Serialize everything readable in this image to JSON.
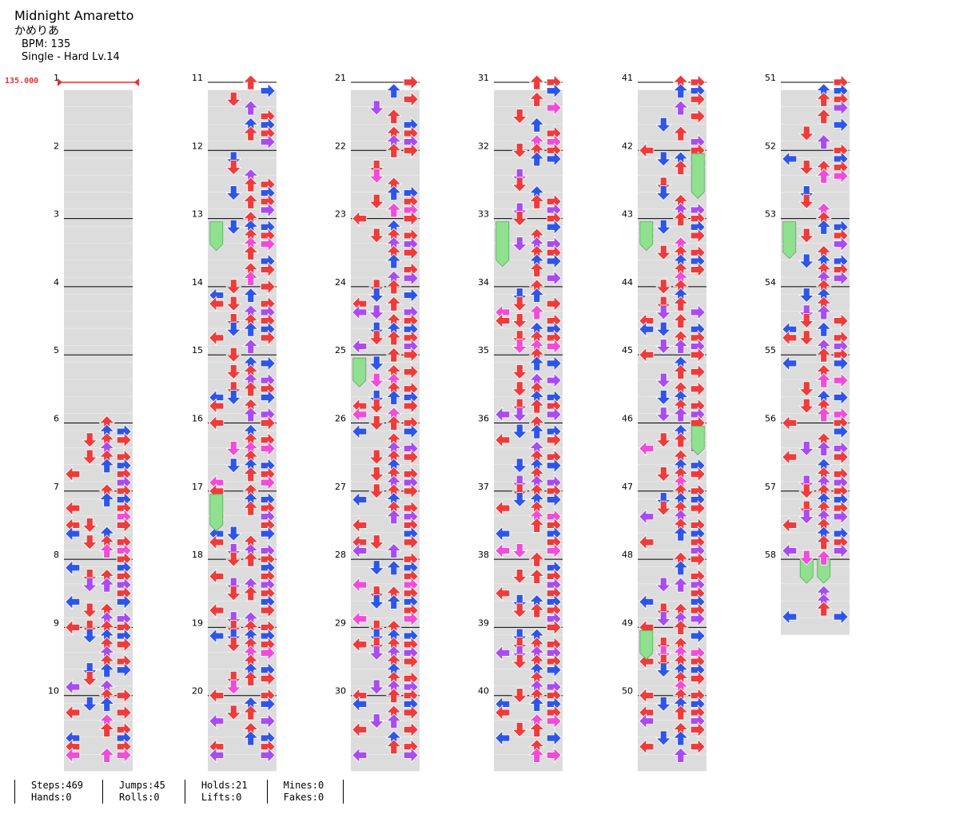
{
  "song": {
    "title": "Midnight Amaretto",
    "artist": "かめりあ",
    "bpm_text": "BPM: 135",
    "chart_text": "Single - Hard  Lv.14"
  },
  "bpm_marker": "135.000",
  "measures": [
    "1",
    "2",
    "3",
    "4",
    "5",
    "6",
    "7",
    "8",
    "9",
    "10",
    "11",
    "12",
    "13",
    "14",
    "15",
    "16",
    "17",
    "18",
    "19",
    "20",
    "21",
    "22",
    "23",
    "24",
    "25",
    "26",
    "27",
    "28",
    "29",
    "30",
    "31",
    "32",
    "33",
    "34",
    "35",
    "36",
    "37",
    "38",
    "39",
    "40",
    "41",
    "42",
    "43",
    "44",
    "45",
    "46",
    "47",
    "48",
    "49",
    "50",
    "51",
    "52",
    "53",
    "54",
    "55",
    "56",
    "57",
    "58"
  ],
  "stats": {
    "steps": "Steps:469",
    "hands": "Hands:0",
    "jumps": "Jumps:45",
    "rolls": "Rolls:0",
    "holds": "Holds:21",
    "lifts": "Lifts:0",
    "mines": "Mines:0",
    "fakes": "Fakes:0"
  },
  "colors": {
    "quarter": "#ee3b3b",
    "eighth": "#2f55e8",
    "sixteenth": "#f04cd8",
    "twelfth": "#a84cf0",
    "hold": "#8fe08f",
    "band": "#dcdcdc",
    "bpm": "#e83030"
  },
  "arrow_rows": [
    "...R|..D.|..U.|...R|..UR|..UR|...R|..UR|..UR|R...|..U.",
    "....|..D.|.D..|..U.|..UR|.D.R|..UR|R..R|L..R|.DUR|..UR",
    "L..R|..U.|.DUR|..UR|..UR|..U.|R..R|..UR|..U.|..UR|.D.R",
    "..U.|.DU.|.D.R|L.U.|LD.R|..UR|.DUR|.DUR|L..R|..U.|.DU.",
    "L..R|..U.|..UR|.D..|..UR|.DU.|..UR|.DUR|LD.R|L.U.|..UR",
    "L..R|R..R|..U.|.DUR|L..R|..U.|..UR|.DUR|..U.|.DUR|..UR",
    "L.U.|.DUR|..UR|.DUR|.DUR|L.U.|..UR|..UR|L..R|R..R|LD.R",
    "R..R|L..R|.DU.|..UR|..U.|R..R|.DUR|R..R|L..R|.DUR|.DUR",
    "..U.|..UR|.DUR|.D..|L.U.|R..R|.DU.|.DUR|LDUR|.DUR|..UR",
    "L..R|..U.|..UR|L..R|L..R|L.UR|.DUR|L.UR|L..R|..UR|.DU."
  ],
  "holds_text": [
    "Holds:21"
  ]
}
